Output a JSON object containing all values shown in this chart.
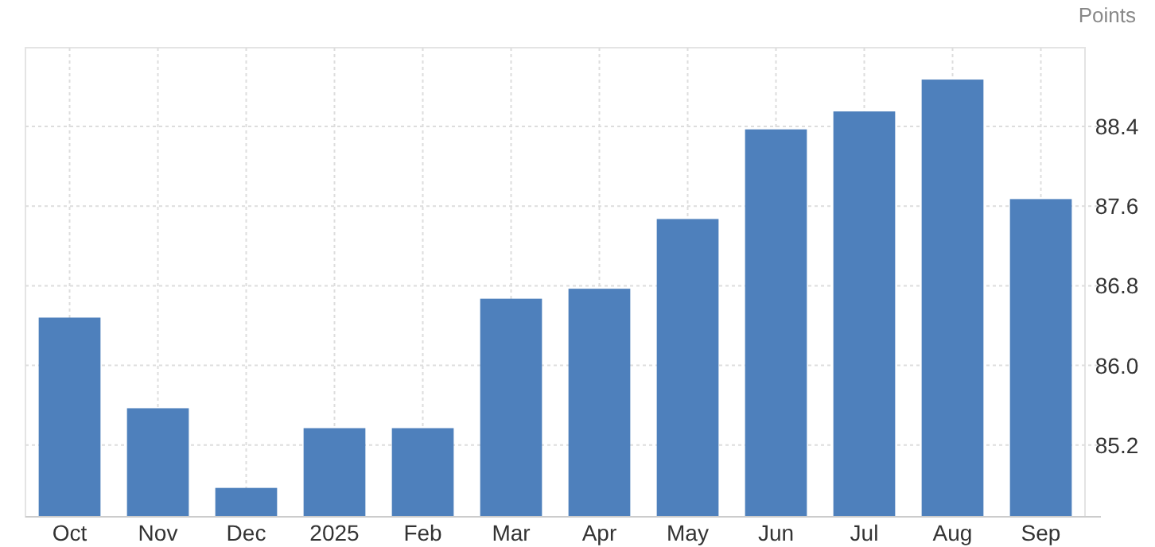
{
  "chart_data": {
    "type": "bar",
    "ylabel": "Points",
    "categories": [
      "Oct",
      "Nov",
      "Dec",
      "2025",
      "Feb",
      "Mar",
      "Apr",
      "May",
      "Jun",
      "Jul",
      "Aug",
      "Sep"
    ],
    "values": [
      86.48,
      85.57,
      84.77,
      85.37,
      85.37,
      86.67,
      86.77,
      87.47,
      88.37,
      88.55,
      88.87,
      87.67
    ],
    "color": "#4e80bc",
    "ylim": [
      84.48,
      89.19
    ],
    "yticks": [
      85.2,
      {
        "value": 86,
        "label": "86.0"
      },
      86.8,
      87.6,
      88.4
    ],
    "grid": true
  }
}
